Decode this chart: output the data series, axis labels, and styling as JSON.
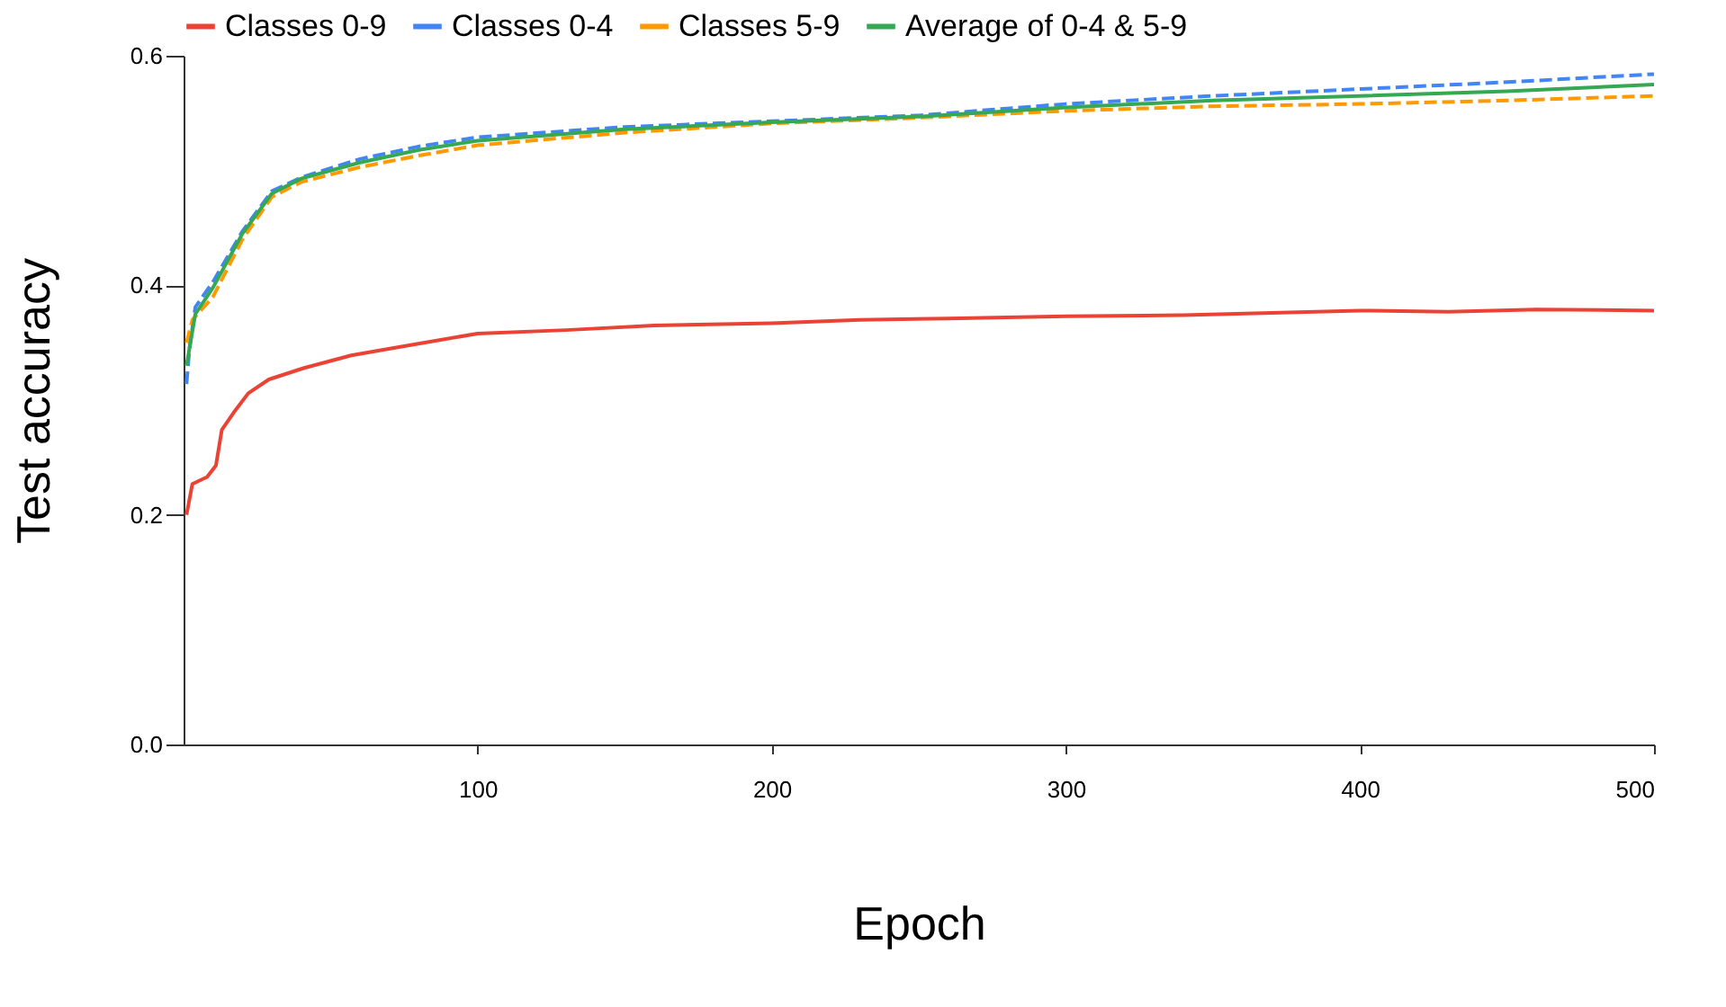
{
  "chart_data": {
    "type": "line",
    "xlabel": "Epoch",
    "ylabel": "Test accuracy",
    "xlim": [
      0,
      500
    ],
    "xticks": [
      100,
      200,
      300,
      400,
      500
    ],
    "ylim": [
      0,
      0.6
    ],
    "yticks": [
      {
        "value": 0,
        "label": "0.0"
      },
      {
        "value": 0.2,
        "label": "0.2"
      },
      {
        "value": 0.4,
        "label": "0.4"
      },
      {
        "value": 0.6,
        "label": "0.6"
      }
    ],
    "grid": false,
    "legend": "top",
    "marker": "none",
    "series": [
      {
        "name": "Classes 0-9",
        "color": "#ea4335",
        "line_style": "solid",
        "x": [
          1,
          3,
          8,
          11,
          13,
          17,
          22,
          29,
          41,
          57,
          75,
          100,
          130,
          160,
          200,
          230,
          260,
          300,
          340,
          370,
          400,
          430,
          460,
          500
        ],
        "values": [
          0.2,
          0.227,
          0.233,
          0.243,
          0.274,
          0.289,
          0.306,
          0.318,
          0.328,
          0.339,
          0.347,
          0.358,
          0.361,
          0.365,
          0.367,
          0.37,
          0.371,
          0.373,
          0.374,
          0.376,
          0.378,
          0.377,
          0.379,
          0.378
        ]
      },
      {
        "name": "Classes 0-4",
        "color": "#4285f4",
        "line_style": "dashed",
        "x": [
          1,
          2,
          4,
          10,
          20,
          30,
          40,
          60,
          80,
          100,
          150,
          200,
          250,
          300,
          350,
          400,
          450,
          500
        ],
        "values": [
          0.314,
          0.345,
          0.381,
          0.403,
          0.447,
          0.482,
          0.494,
          0.51,
          0.521,
          0.529,
          0.538,
          0.543,
          0.548,
          0.558,
          0.565,
          0.571,
          0.577,
          0.584
        ]
      },
      {
        "name": "Classes 5-9",
        "color": "#ff9900",
        "line_style": "dashed",
        "x": [
          1,
          3,
          10,
          20,
          30,
          40,
          60,
          80,
          100,
          150,
          200,
          250,
          300,
          350,
          400,
          450,
          500
        ],
        "values": [
          0.35,
          0.37,
          0.39,
          0.44,
          0.477,
          0.49,
          0.503,
          0.513,
          0.522,
          0.533,
          0.541,
          0.546,
          0.552,
          0.556,
          0.558,
          0.561,
          0.565
        ]
      },
      {
        "name": "Average of 0-4 & 5-9",
        "color": "#34a853",
        "line_style": "solid",
        "x": [
          1,
          4,
          10,
          20,
          30,
          40,
          60,
          80,
          100,
          150,
          200,
          250,
          300,
          350,
          400,
          450,
          500
        ],
        "values": [
          0.33,
          0.375,
          0.398,
          0.445,
          0.48,
          0.493,
          0.507,
          0.518,
          0.526,
          0.536,
          0.542,
          0.547,
          0.555,
          0.561,
          0.565,
          0.569,
          0.575
        ]
      }
    ]
  }
}
